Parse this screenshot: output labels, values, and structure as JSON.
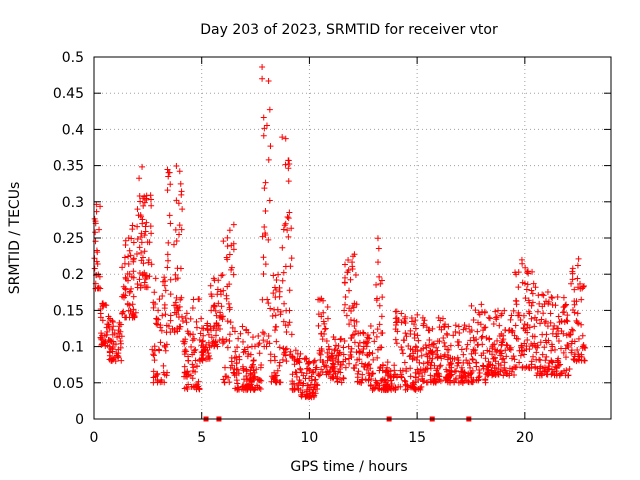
{
  "chart_data": {
    "type": "scatter",
    "title": "Day 203 of 2023, SRMTID for receiver vtor",
    "xlabel": "GPS time / hours",
    "ylabel": "SRMTID / TECUs",
    "xlim": [
      0,
      24
    ],
    "ylim": [
      0,
      0.5
    ],
    "xticks": [
      0,
      5,
      10,
      15,
      20
    ],
    "xtick_labels": [
      "0",
      "5",
      "10",
      "15",
      "20"
    ],
    "yticks": [
      0,
      0.05,
      0.1,
      0.15,
      0.2,
      0.25,
      0.3,
      0.35,
      0.4,
      0.45,
      0.5
    ],
    "ytick_labels": [
      "0",
      "0.05",
      "0.1",
      "0.15",
      "0.2",
      "0.25",
      "0.3",
      "0.35",
      "0.4",
      "0.45",
      "0.5"
    ],
    "grid": true,
    "color": "#ff0000",
    "zero_markers_x": [
      5.2,
      5.8,
      13.7,
      15.7,
      17.4
    ],
    "segments": [
      {
        "x": [
          0,
          0.3
        ],
        "y": [
          0.18,
          0.3
        ]
      },
      {
        "x": [
          0.3,
          0.7
        ],
        "y": [
          0.1,
          0.16
        ]
      },
      {
        "x": [
          0.7,
          1.3
        ],
        "y": [
          0.08,
          0.14
        ]
      },
      {
        "x": [
          1.3,
          2.0
        ],
        "y": [
          0.14,
          0.27
        ]
      },
      {
        "x": [
          2.0,
          2.7
        ],
        "y": [
          0.18,
          0.35
        ]
      },
      {
        "x": [
          2.7,
          3.4
        ],
        "y": [
          0.05,
          0.2
        ]
      },
      {
        "x": [
          3.4,
          4.1
        ],
        "y": [
          0.12,
          0.35
        ]
      },
      {
        "x": [
          4.1,
          4.9
        ],
        "y": [
          0.04,
          0.17
        ]
      },
      {
        "x": [
          4.9,
          5.4
        ],
        "y": [
          0.08,
          0.15
        ]
      },
      {
        "x": [
          5.4,
          6.0
        ],
        "y": [
          0.1,
          0.2
        ]
      },
      {
        "x": [
          6.0,
          6.5
        ],
        "y": [
          0.05,
          0.27
        ]
      },
      {
        "x": [
          6.5,
          7.2
        ],
        "y": [
          0.04,
          0.13
        ]
      },
      {
        "x": [
          7.2,
          7.8
        ],
        "y": [
          0.04,
          0.12
        ]
      },
      {
        "x": [
          7.8,
          8.2
        ],
        "y": [
          0.1,
          0.49
        ]
      },
      {
        "x": [
          8.2,
          8.7
        ],
        "y": [
          0.05,
          0.2
        ]
      },
      {
        "x": [
          8.7,
          9.2
        ],
        "y": [
          0.08,
          0.41
        ]
      },
      {
        "x": [
          9.2,
          9.6
        ],
        "y": [
          0.04,
          0.1
        ]
      },
      {
        "x": [
          9.6,
          10.4
        ],
        "y": [
          0.03,
          0.09
        ]
      },
      {
        "x": [
          10.4,
          10.9
        ],
        "y": [
          0.06,
          0.17
        ]
      },
      {
        "x": [
          10.9,
          11.6
        ],
        "y": [
          0.05,
          0.12
        ]
      },
      {
        "x": [
          11.6,
          12.2
        ],
        "y": [
          0.07,
          0.23
        ]
      },
      {
        "x": [
          12.2,
          12.8
        ],
        "y": [
          0.05,
          0.12
        ]
      },
      {
        "x": [
          12.8,
          13.4
        ],
        "y": [
          0.04,
          0.26
        ]
      },
      {
        "x": [
          13.4,
          14.0
        ],
        "y": [
          0.04,
          0.08
        ]
      },
      {
        "x": [
          14.0,
          15.2
        ],
        "y": [
          0.04,
          0.15
        ]
      },
      {
        "x": [
          15.2,
          16.3
        ],
        "y": [
          0.05,
          0.14
        ]
      },
      {
        "x": [
          16.3,
          17.5
        ],
        "y": [
          0.05,
          0.13
        ]
      },
      {
        "x": [
          17.5,
          18.2
        ],
        "y": [
          0.05,
          0.16
        ]
      },
      {
        "x": [
          18.2,
          19.5
        ],
        "y": [
          0.06,
          0.15
        ]
      },
      {
        "x": [
          19.5,
          20.5
        ],
        "y": [
          0.07,
          0.22
        ]
      },
      {
        "x": [
          20.5,
          21.2
        ],
        "y": [
          0.06,
          0.18
        ]
      },
      {
        "x": [
          21.2,
          22.1
        ],
        "y": [
          0.06,
          0.17
        ]
      },
      {
        "x": [
          22.1,
          22.8
        ],
        "y": [
          0.08,
          0.23
        ]
      }
    ]
  }
}
